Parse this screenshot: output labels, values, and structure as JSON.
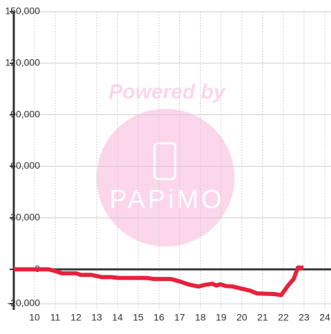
{
  "chart_data": {
    "type": "line",
    "x": [
      9,
      10.67,
      11,
      11.33,
      12,
      12.23,
      12.73,
      13.23,
      13.73,
      14.07,
      15.4,
      15.73,
      16.57,
      17.07,
      17.4,
      17.9,
      18.23,
      18.57,
      18.77,
      18.97,
      19.23,
      19.57,
      19.9,
      20.4,
      20.73,
      21.57,
      21.9,
      22.23,
      22.5,
      22.7,
      22.97
    ],
    "series": [
      {
        "color": "#e8223c",
        "values": [
          0,
          0,
          -1000,
          -2300,
          -2300,
          -3200,
          -3200,
          -4500,
          -4500,
          -5000,
          -5000,
          -5600,
          -5600,
          -7300,
          -8700,
          -10000,
          -9000,
          -8400,
          -9400,
          -8700,
          -9700,
          -10000,
          -11000,
          -12400,
          -14000,
          -14400,
          -15000,
          -9400,
          -5600,
          1000,
          1000
        ]
      }
    ],
    "xlim": [
      9,
      24.3
    ],
    "xticks": [
      10,
      11,
      12,
      13,
      14,
      15,
      16,
      17,
      18,
      19,
      20,
      21,
      22,
      23,
      24
    ],
    "ylim": [
      -20000,
      150000
    ],
    "yticks": [
      {
        "value": -20000,
        "label": "-20,000"
      },
      0,
      {
        "value": 30000,
        "label": "30,000"
      },
      {
        "value": 60000,
        "label": "60,000"
      },
      {
        "value": 90000,
        "label": "90,000"
      },
      {
        "value": 120000,
        "label": "120,000"
      },
      {
        "value": 150000,
        "label": "150,000"
      }
    ],
    "grid": true
  },
  "watermark": {
    "top": "Powered by",
    "logo": "PAPiMO"
  }
}
